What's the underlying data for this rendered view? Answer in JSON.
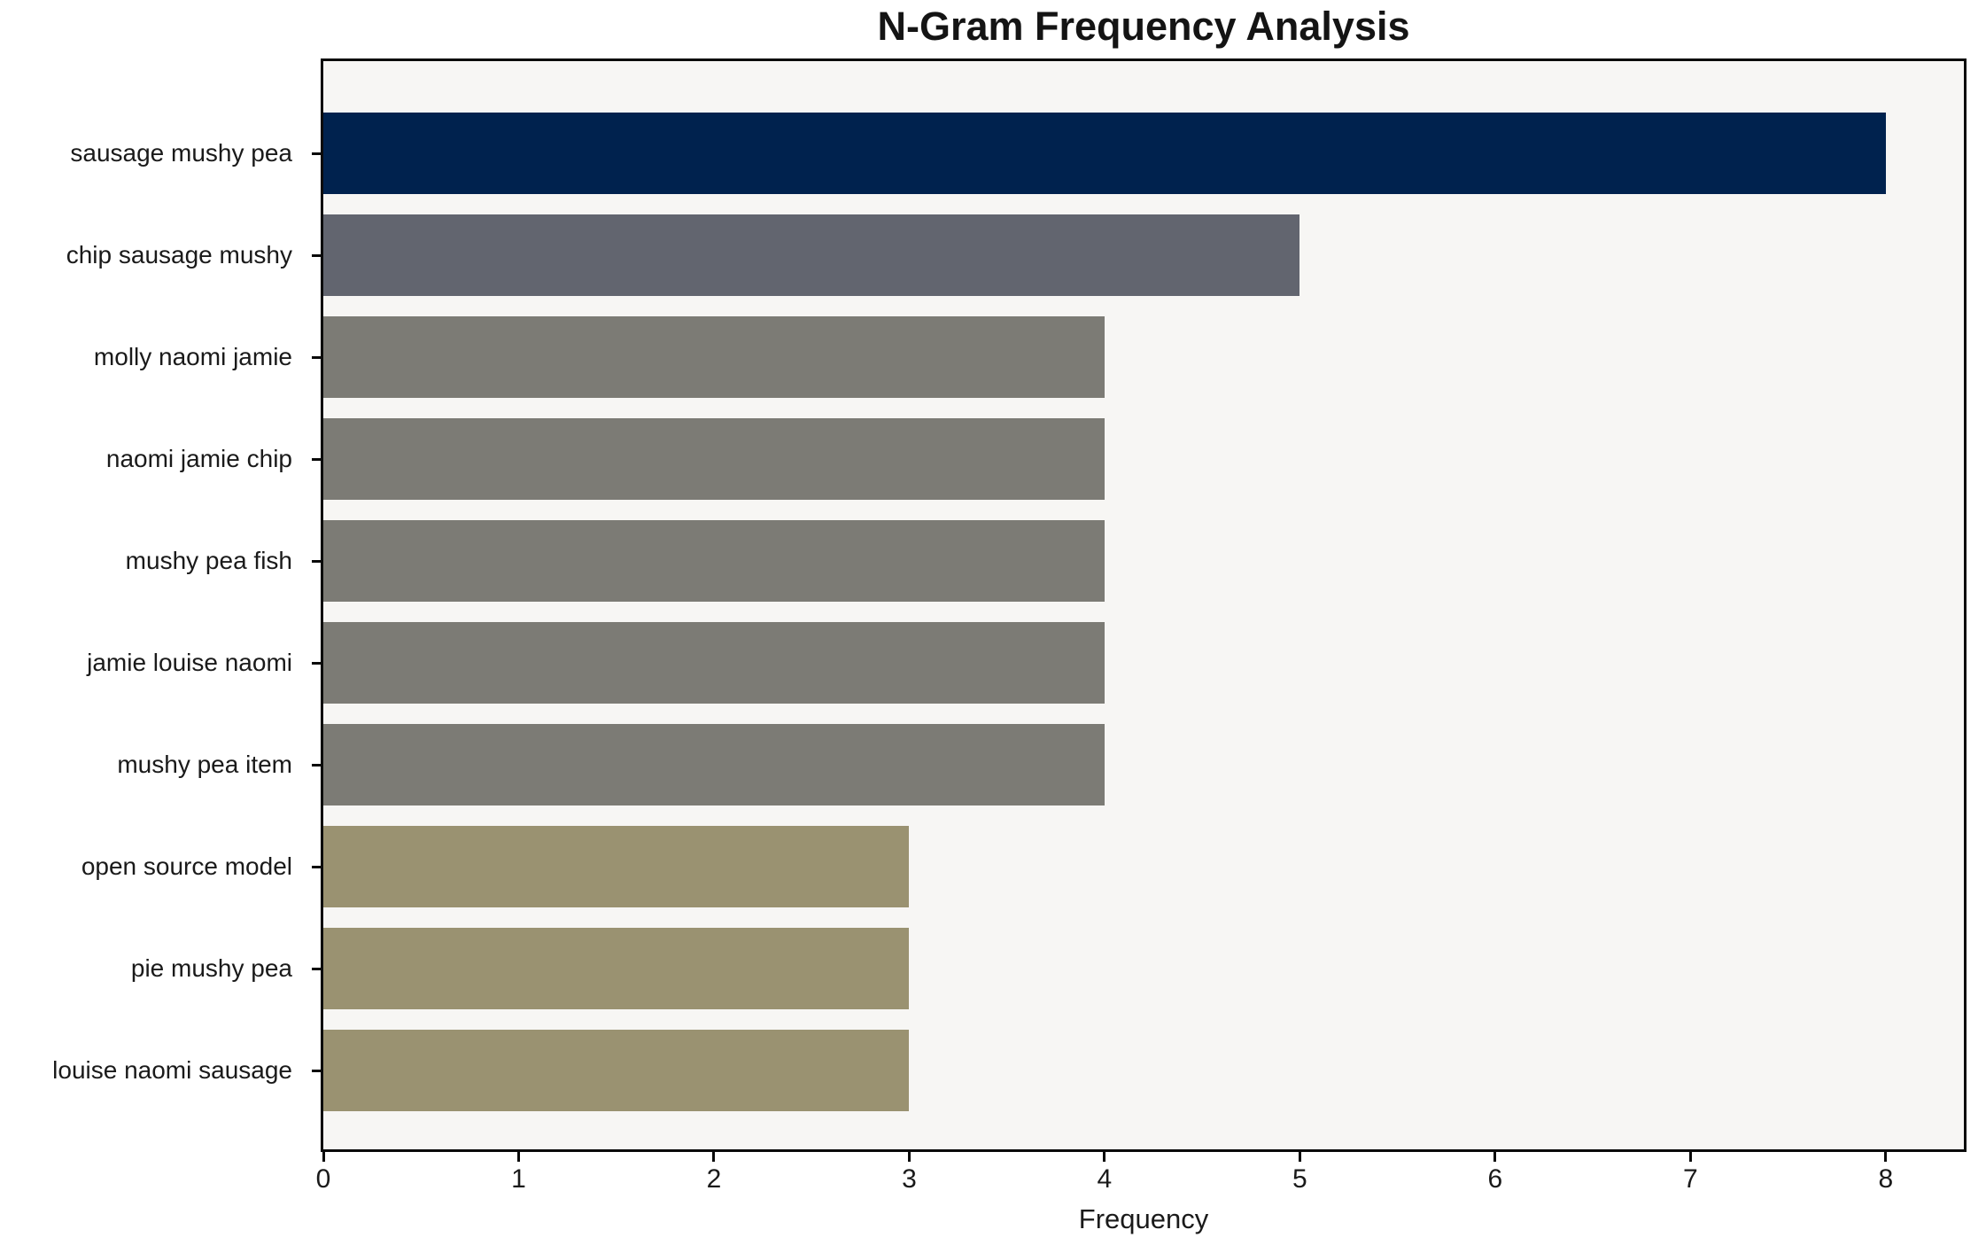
{
  "figure": {
    "background": "#ffffff"
  },
  "chart_data": {
    "type": "bar",
    "orientation": "horizontal",
    "title": "N-Gram Frequency Analysis",
    "xlabel": "Frequency",
    "ylabel": "",
    "categories": [
      "sausage mushy pea",
      "chip sausage mushy",
      "molly naomi jamie",
      "naomi jamie chip",
      "mushy pea fish",
      "jamie louise naomi",
      "mushy pea item",
      "open source model",
      "pie mushy pea",
      "louise naomi sausage"
    ],
    "values": [
      8,
      5,
      4,
      4,
      4,
      4,
      4,
      3,
      3,
      3
    ],
    "bar_colors": [
      "#00224e",
      "#62656f",
      "#7c7b75",
      "#7c7b75",
      "#7c7b75",
      "#7c7b75",
      "#7c7b75",
      "#9a9271",
      "#9a9271",
      "#9a9271"
    ],
    "xticks": [
      "0",
      "1",
      "2",
      "3",
      "4",
      "5",
      "6",
      "7",
      "8"
    ],
    "xtick_values": [
      0,
      1,
      2,
      3,
      4,
      5,
      6,
      7,
      8
    ],
    "xlim": [
      0,
      8.4
    ],
    "grid": false,
    "legend": "none",
    "plot_background": "#f7f6f4",
    "axis_color": "#0a0a0a"
  }
}
